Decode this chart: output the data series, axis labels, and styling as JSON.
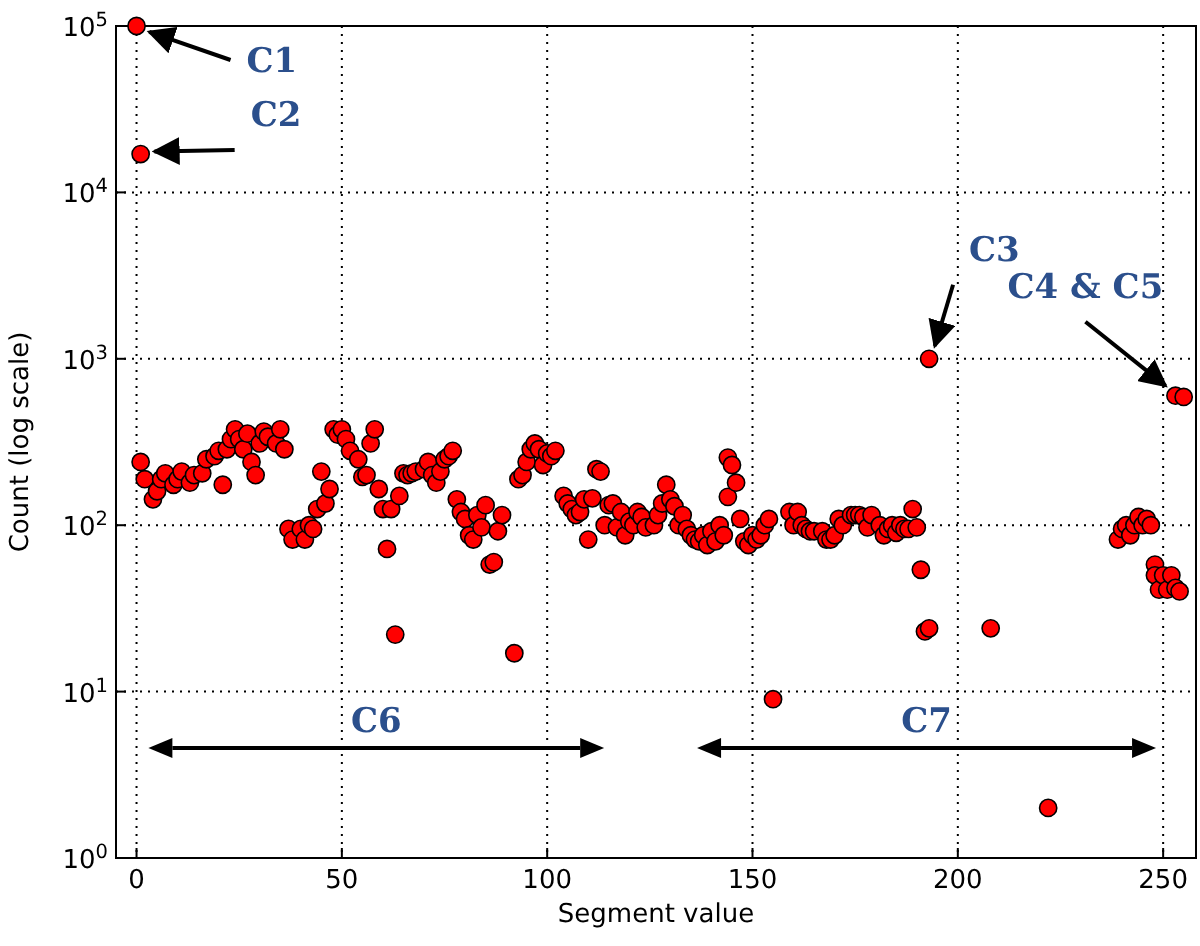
{
  "chart_data": {
    "type": "scatter",
    "xlabel": "Segment value",
    "ylabel": "Count (log scale)",
    "log": "y",
    "grid": true,
    "marker": "circle",
    "xlim": [
      -5,
      258
    ],
    "ylim": [
      1,
      100000
    ],
    "xticks": [
      0,
      50,
      100,
      150,
      200,
      250
    ],
    "yticks": [
      {
        "value": 1,
        "label": "10$^{0}$"
      },
      {
        "value": 10,
        "label": "10$^{1}$"
      },
      {
        "value": 100,
        "label": "10$^{2}$"
      },
      {
        "value": 1000,
        "label": "10$^{3}$"
      },
      {
        "value": 10000,
        "label": "10$^{4}$"
      },
      {
        "value": 100000,
        "label": "10$^{5}$"
      }
    ],
    "series": [
      {
        "color": "#ff0000",
        "x": [
          0,
          1,
          1,
          2,
          4,
          5,
          6,
          7,
          9,
          10,
          11,
          13,
          14,
          16,
          17,
          19,
          20,
          21,
          22,
          23,
          24,
          25,
          26,
          27,
          28,
          29,
          30,
          31,
          32,
          34,
          35,
          36,
          37,
          38,
          40,
          41,
          42,
          43,
          44,
          45,
          46,
          47,
          48,
          49,
          50,
          51,
          52,
          54,
          55,
          56,
          57,
          58,
          59,
          60,
          61,
          62,
          63,
          64,
          65,
          66,
          67,
          68,
          70,
          71,
          72,
          73,
          74,
          75,
          76,
          77,
          78,
          79,
          80,
          81,
          82,
          83,
          84,
          85,
          86,
          87,
          88,
          89,
          92,
          93,
          94,
          95,
          96,
          97,
          98,
          99,
          100,
          101,
          102,
          104,
          105,
          106,
          107,
          108,
          109,
          110,
          111,
          112,
          113,
          114,
          115,
          116,
          117,
          118,
          119,
          120,
          121,
          122,
          123,
          124,
          126,
          127,
          128,
          129,
          130,
          131,
          132,
          133,
          134,
          135,
          136,
          137,
          138,
          139,
          140,
          141,
          142,
          143,
          144,
          144,
          145,
          146,
          147,
          148,
          149,
          150,
          151,
          152,
          153,
          154,
          155,
          159,
          160,
          161,
          162,
          163,
          164,
          165,
          167,
          168,
          169,
          170,
          171,
          172,
          174,
          175,
          176,
          177,
          178,
          179,
          181,
          182,
          183,
          184,
          185,
          186,
          187,
          188,
          189,
          190,
          191,
          192,
          193,
          193,
          208,
          222,
          239,
          240,
          241,
          242,
          243,
          244,
          245,
          246,
          247,
          248,
          248,
          249,
          250,
          251,
          252,
          253,
          254,
          253,
          255
        ],
        "values": [
          100000,
          17000,
          240,
          189,
          143,
          160,
          189,
          205,
          175,
          189,
          210,
          180,
          200,
          205,
          249,
          260,
          280,
          175,
          286,
          329,
          377,
          329,
          286,
          355,
          240,
          200,
          310,
          365,
          340,
          310,
          377,
          286,
          95,
          82,
          95,
          82,
          100,
          95,
          125,
          210,
          135,
          165,
          377,
          350,
          377,
          329,
          280,
          249,
          195,
          200,
          310,
          377,
          165,
          125,
          72,
          125,
          22,
          150,
          205,
          200,
          205,
          210,
          217,
          240,
          200,
          180,
          210,
          249,
          260,
          280,
          143,
          120,
          109,
          87,
          82,
          115,
          97,
          132,
          58,
          60,
          92,
          115,
          17,
          189,
          200,
          240,
          286,
          310,
          286,
          230,
          270,
          260,
          280,
          150,
          135,
          125,
          115,
          120,
          143,
          82,
          145,
          217,
          210,
          100,
          132,
          135,
          97,
          120,
          87,
          105,
          100,
          120,
          112,
          97,
          100,
          115,
          135,
          175,
          143,
          130,
          100,
          115,
          95,
          87,
          82,
          80,
          87,
          76,
          92,
          80,
          100,
          87,
          148,
          255,
          230,
          180,
          109,
          80,
          76,
          87,
          82,
          87,
          100,
          109,
          9,
          120,
          100,
          120,
          100,
          95,
          92,
          92,
          92,
          82,
          82,
          87,
          109,
          100,
          115,
          115,
          115,
          112,
          97,
          115,
          100,
          87,
          95,
          100,
          90,
          100,
          95,
          95,
          125,
          97,
          54,
          23,
          24,
          1000,
          24,
          2,
          82,
          95,
          100,
          87,
          100,
          112,
          100,
          109,
          100,
          58,
          50,
          41,
          50,
          41,
          50,
          42,
          40,
          600,
          590
        ]
      }
    ],
    "annotations": [
      {
        "text": "C1",
        "x": 0,
        "y": 100000
      },
      {
        "text": "C2",
        "x": 1,
        "y": 17000
      },
      {
        "text": "C3",
        "x": 193,
        "y": 1000
      },
      {
        "text": "C4 & C5",
        "x": 253,
        "y": 600
      },
      "C6",
      "C7"
    ]
  }
}
